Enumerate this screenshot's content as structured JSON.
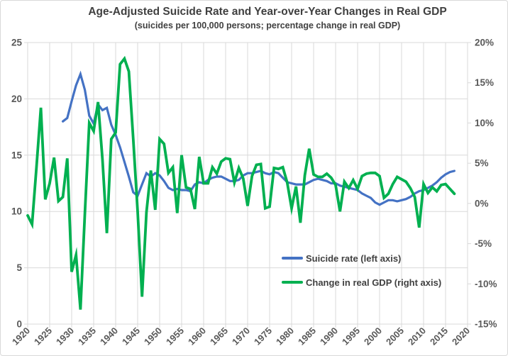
{
  "chart_data": {
    "type": "line",
    "title": "Age-Adjusted Suicide Rate and Year-over-Year Changes in Real GDP",
    "subtitle": "(suicides per 100,000 persons; percentage change in real GDP)",
    "grid": true,
    "legend_position": "inside-lower-right",
    "colors": {
      "suicide_rate": "#4472C4",
      "gdp_change": "#00B050",
      "gridline": "#D9D9D9",
      "axis_text": "#595959",
      "title_text": "#404040",
      "background": "#FFFFFF"
    },
    "x_axis": {
      "min": 1920,
      "max": 2020,
      "tick_interval": 5,
      "tick_labels": [
        "1920",
        "1925",
        "1930",
        "1935",
        "1940",
        "1945",
        "1950",
        "1955",
        "1960",
        "1965",
        "1970",
        "1975",
        "1980",
        "1985",
        "1990",
        "1995",
        "2000",
        "2005",
        "2010",
        "2015",
        "2020"
      ]
    },
    "left_axis": {
      "title_implied": "suicides per 100,000 persons",
      "min": 0,
      "max": 25,
      "tick_interval": 5,
      "tick_labels": [
        "0",
        "5",
        "10",
        "15",
        "20",
        "25"
      ]
    },
    "right_axis": {
      "title_implied": "percentage change in real GDP",
      "min": -15,
      "max": 20,
      "tick_interval": 5,
      "tick_labels": [
        "-15%",
        "-10%",
        "-5%",
        "0%",
        "5%",
        "10%",
        "15%",
        "20%"
      ]
    },
    "series": [
      {
        "name": "Suicide rate (left axis)",
        "axis": "left",
        "color": "#4472C4",
        "stroke_width": 3.2,
        "x_start": 1928,
        "x_step": 1,
        "x_end": 2017,
        "values": [
          18.0,
          18.3,
          19.8,
          21.2,
          22.2,
          20.8,
          18.5,
          17.8,
          19.5,
          19.0,
          19.2,
          17.7,
          16.8,
          15.7,
          14.4,
          13.1,
          11.7,
          11.4,
          12.4,
          13.4,
          13.1,
          13.4,
          13.2,
          12.7,
          12.1,
          11.9,
          12.0,
          11.9,
          11.9,
          11.8,
          12.4,
          12.6,
          12.5,
          12.8,
          13.0,
          13.1,
          13.1,
          12.9,
          12.7,
          12.7,
          12.8,
          13.2,
          13.4,
          13.4,
          13.5,
          13.6,
          13.4,
          13.3,
          13.5,
          13.4,
          13.0,
          12.6,
          12.5,
          12.4,
          12.4,
          12.4,
          12.6,
          12.8,
          12.9,
          12.8,
          12.7,
          12.5,
          12.5,
          12.3,
          12.2,
          12.1,
          12.0,
          11.9,
          11.6,
          11.4,
          11.2,
          10.8,
          10.6,
          10.8,
          11.0,
          11.0,
          10.9,
          11.0,
          11.1,
          11.3,
          11.6,
          11.8,
          11.9,
          12.1,
          12.3,
          12.6,
          13.0,
          13.3,
          13.5,
          13.6
        ]
      },
      {
        "name": "Change in real GDP (right axis)",
        "axis": "right",
        "color": "#00B050",
        "stroke_width": 3.8,
        "x_start": 1920,
        "x_step": 1,
        "x_end": 2017,
        "values": [
          -1.5,
          -2.6,
          4.5,
          11.9,
          0.5,
          2.5,
          5.7,
          0.3,
          0.8,
          5.6,
          -8.5,
          -6.4,
          -13.2,
          -1.3,
          10.0,
          9.0,
          12.6,
          5.5,
          -3.7,
          8.0,
          8.8,
          17.3,
          18.0,
          16.4,
          8.0,
          -1.0,
          -11.6,
          -1.1,
          4.1,
          -0.8,
          8.0,
          7.4,
          3.8,
          4.5,
          -1.2,
          6.0,
          2.0,
          1.8,
          -0.7,
          5.8,
          2.5,
          2.5,
          4.5,
          3.7,
          5.2,
          5.6,
          5.5,
          2.6,
          4.4,
          3.1,
          -0.3,
          3.4,
          4.8,
          4.9,
          -0.6,
          -0.4,
          4.4,
          4.3,
          4.5,
          2.6,
          -0.6,
          2.1,
          -2.4,
          3.5,
          6.8,
          3.6,
          3.3,
          3.3,
          3.7,
          3.2,
          2.3,
          -1.0,
          2.7,
          1.9,
          2.9,
          1.8,
          3.4,
          3.7,
          3.8,
          3.8,
          3.4,
          0.7,
          1.2,
          2.4,
          3.3,
          3.0,
          2.7,
          1.9,
          0.8,
          -3.0,
          2.4,
          1.3,
          2.0,
          1.5,
          2.3,
          2.4,
          1.8,
          1.2
        ]
      }
    ]
  }
}
